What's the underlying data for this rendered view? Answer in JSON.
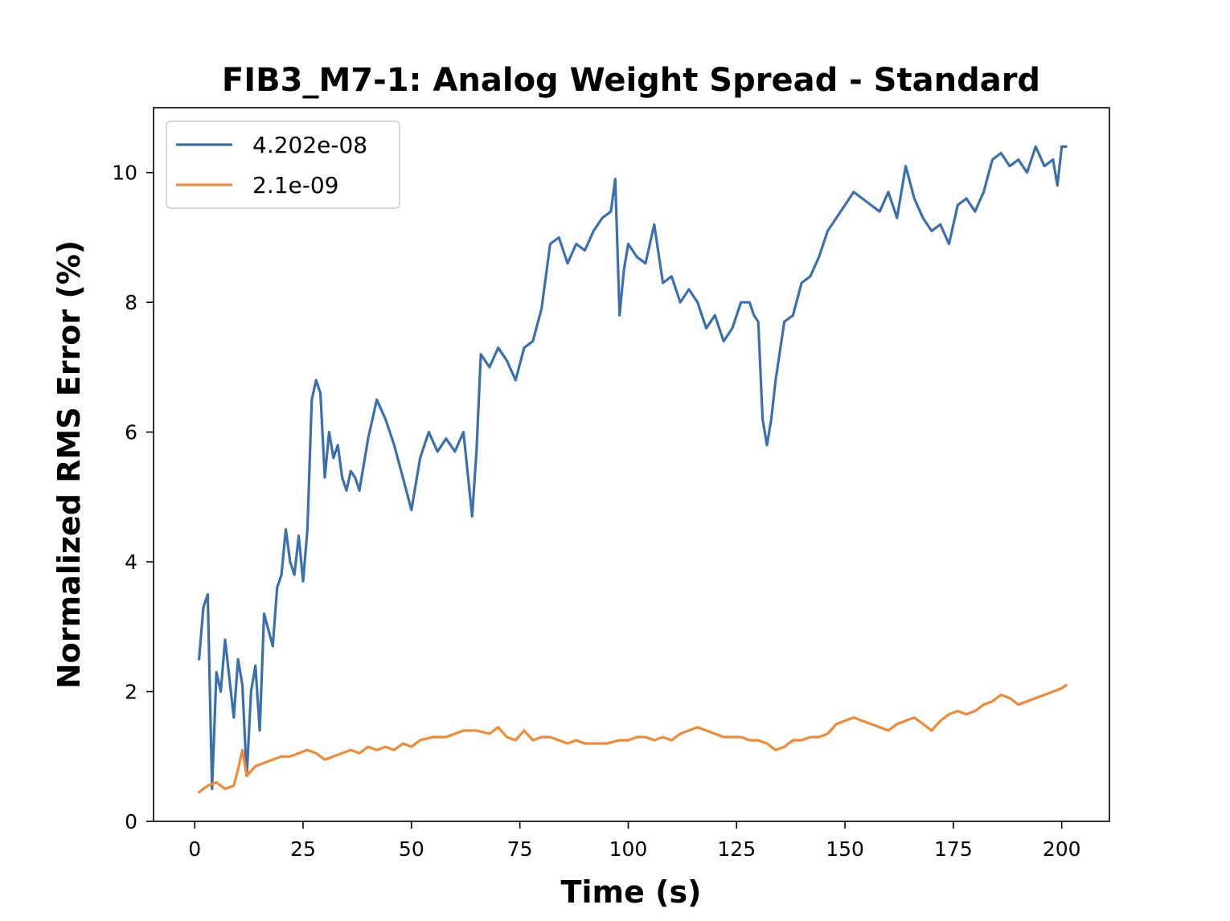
{
  "chart_data": {
    "type": "line",
    "title": "FIB3_M7-1: Analog Weight Spread - Standard",
    "xlabel": "Time (s)",
    "ylabel": "Normalized RMS Error (%)",
    "xlim": [
      -9.5,
      211
    ],
    "ylim": [
      0,
      11
    ],
    "xticks": [
      0,
      25,
      50,
      75,
      100,
      125,
      150,
      175,
      200
    ],
    "yticks": [
      0,
      2,
      4,
      6,
      8,
      10
    ],
    "grid": false,
    "legend": "upper-left",
    "series": [
      {
        "name": "4.202e-08",
        "color": "#3a70ae",
        "x": [
          1,
          2,
          3,
          4,
          5,
          6,
          7,
          8,
          9,
          10,
          11,
          12,
          13,
          14,
          15,
          16,
          18,
          19,
          20,
          21,
          22,
          23,
          24,
          25,
          26,
          27,
          28,
          29,
          30,
          31,
          32,
          33,
          34,
          35,
          36,
          37,
          38,
          40,
          42,
          44,
          46,
          48,
          50,
          52,
          54,
          56,
          58,
          60,
          62,
          64,
          65,
          66,
          68,
          70,
          72,
          74,
          76,
          78,
          80,
          82,
          84,
          86,
          88,
          90,
          92,
          94,
          96,
          97,
          98,
          99,
          100,
          102,
          104,
          106,
          108,
          110,
          112,
          114,
          116,
          118,
          120,
          122,
          124,
          126,
          128,
          129,
          130,
          131,
          132,
          133,
          134,
          136,
          138,
          140,
          142,
          144,
          146,
          148,
          150,
          152,
          154,
          156,
          158,
          160,
          162,
          164,
          166,
          168,
          170,
          172,
          174,
          176,
          178,
          180,
          182,
          184,
          186,
          188,
          190,
          192,
          194,
          196,
          198,
          199,
          200,
          201
        ],
        "values": [
          2.5,
          3.3,
          3.5,
          0.5,
          2.3,
          2.0,
          2.8,
          2.2,
          1.6,
          2.5,
          2.1,
          0.7,
          2.0,
          2.4,
          1.4,
          3.2,
          2.7,
          3.6,
          3.8,
          4.5,
          4.0,
          3.8,
          4.4,
          3.7,
          4.5,
          6.5,
          6.8,
          6.6,
          5.3,
          6.0,
          5.6,
          5.8,
          5.3,
          5.1,
          5.4,
          5.3,
          5.1,
          5.9,
          6.5,
          6.2,
          5.8,
          5.3,
          4.8,
          5.6,
          6.0,
          5.7,
          5.9,
          5.7,
          6.0,
          4.7,
          5.7,
          7.2,
          7.0,
          7.3,
          7.1,
          6.8,
          7.3,
          7.4,
          7.9,
          8.9,
          9.0,
          8.6,
          8.9,
          8.8,
          9.1,
          9.3,
          9.4,
          9.9,
          7.8,
          8.5,
          8.9,
          8.7,
          8.6,
          9.2,
          8.3,
          8.4,
          8.0,
          8.2,
          8.0,
          7.6,
          7.8,
          7.4,
          7.6,
          8.0,
          8.0,
          7.8,
          7.7,
          6.2,
          5.8,
          6.2,
          6.8,
          7.7,
          7.8,
          8.3,
          8.4,
          8.7,
          9.1,
          9.3,
          9.5,
          9.7,
          9.6,
          9.5,
          9.4,
          9.7,
          9.3,
          10.1,
          9.6,
          9.3,
          9.1,
          9.2,
          8.9,
          9.5,
          9.6,
          9.4,
          9.7,
          10.2,
          10.3,
          10.1,
          10.2,
          10.0,
          10.4,
          10.1,
          10.2,
          9.8,
          10.4,
          10.4
        ]
      },
      {
        "name": "2.1e-09",
        "color": "#f08a36",
        "x": [
          1,
          3,
          5,
          7,
          9,
          10,
          11,
          12,
          14,
          16,
          18,
          20,
          22,
          24,
          26,
          28,
          30,
          32,
          34,
          36,
          38,
          40,
          42,
          44,
          46,
          48,
          50,
          52,
          55,
          58,
          60,
          62,
          65,
          68,
          70,
          72,
          74,
          76,
          78,
          80,
          82,
          84,
          86,
          88,
          90,
          92,
          95,
          98,
          100,
          102,
          104,
          106,
          108,
          110,
          112,
          114,
          116,
          118,
          120,
          122,
          124,
          126,
          128,
          130,
          132,
          134,
          136,
          138,
          140,
          142,
          144,
          146,
          148,
          150,
          152,
          154,
          156,
          158,
          160,
          162,
          164,
          166,
          168,
          170,
          172,
          174,
          176,
          178,
          180,
          182,
          184,
          186,
          188,
          190,
          192,
          194,
          196,
          198,
          200,
          201
        ],
        "values": [
          0.45,
          0.55,
          0.6,
          0.5,
          0.55,
          0.8,
          1.1,
          0.7,
          0.85,
          0.9,
          0.95,
          1.0,
          1.0,
          1.05,
          1.1,
          1.05,
          0.95,
          1.0,
          1.05,
          1.1,
          1.05,
          1.15,
          1.1,
          1.15,
          1.1,
          1.2,
          1.15,
          1.25,
          1.3,
          1.3,
          1.35,
          1.4,
          1.4,
          1.35,
          1.45,
          1.3,
          1.25,
          1.4,
          1.25,
          1.3,
          1.3,
          1.25,
          1.2,
          1.25,
          1.2,
          1.2,
          1.2,
          1.25,
          1.25,
          1.3,
          1.3,
          1.25,
          1.3,
          1.25,
          1.35,
          1.4,
          1.45,
          1.4,
          1.35,
          1.3,
          1.3,
          1.3,
          1.25,
          1.25,
          1.2,
          1.1,
          1.15,
          1.25,
          1.25,
          1.3,
          1.3,
          1.35,
          1.5,
          1.55,
          1.6,
          1.55,
          1.5,
          1.45,
          1.4,
          1.5,
          1.55,
          1.6,
          1.5,
          1.4,
          1.55,
          1.65,
          1.7,
          1.65,
          1.7,
          1.8,
          1.85,
          1.95,
          1.9,
          1.8,
          1.85,
          1.9,
          1.95,
          2.0,
          2.05,
          2.1
        ]
      }
    ]
  }
}
